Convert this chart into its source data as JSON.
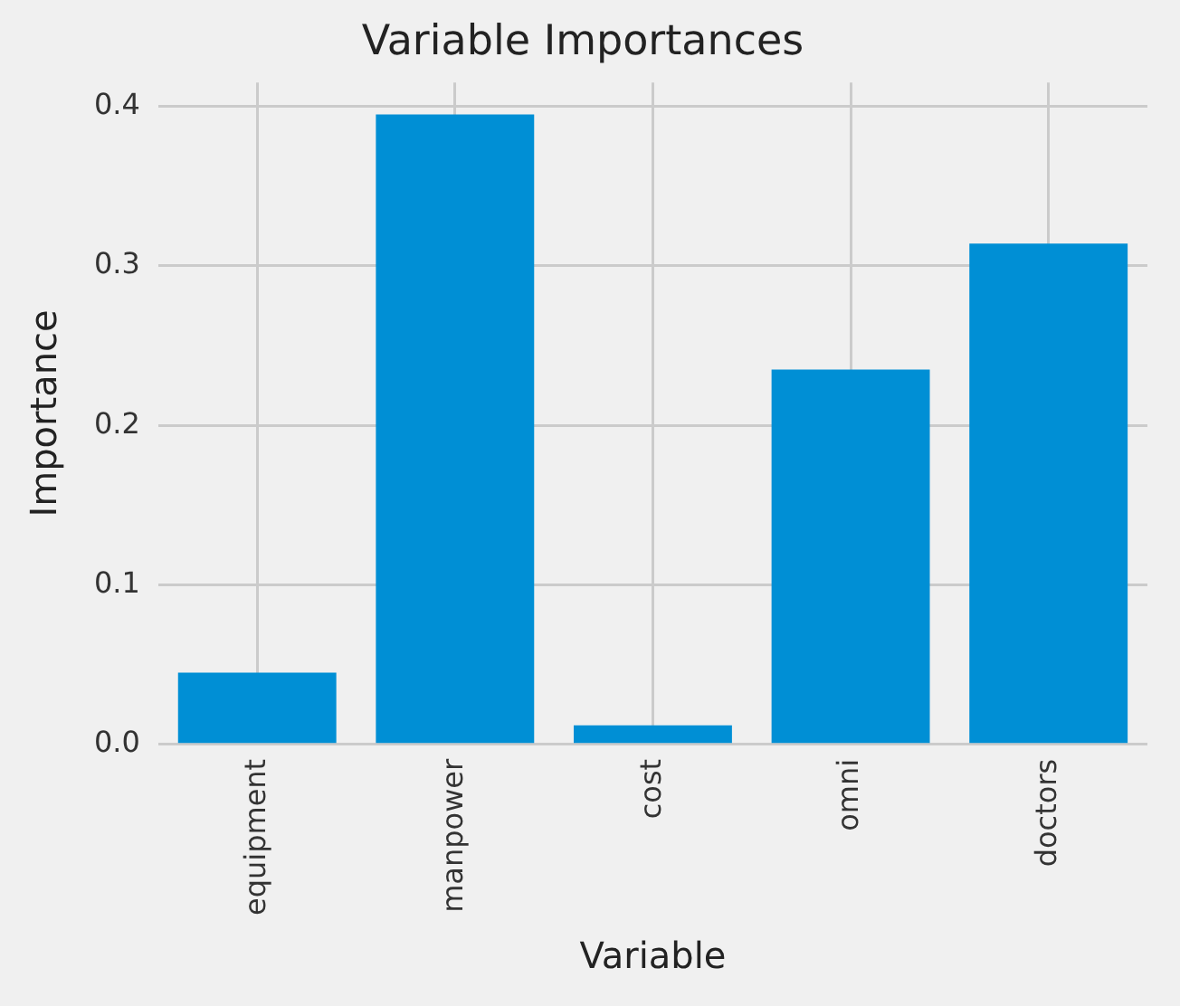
{
  "chart_data": {
    "type": "bar",
    "title": "Variable Importances",
    "xlabel": "Variable",
    "ylabel": "Importance",
    "categories": [
      "equipment",
      "manpower",
      "cost",
      "omni",
      "doctors"
    ],
    "values": [
      0.045,
      0.395,
      0.012,
      0.235,
      0.314
    ],
    "color": "#008fd5",
    "ylim": [
      0,
      0.415
    ],
    "yticks": [
      {
        "value": 0,
        "label": "0.0"
      },
      0.1,
      0.2,
      0.3,
      0.4
    ],
    "grid": true
  }
}
